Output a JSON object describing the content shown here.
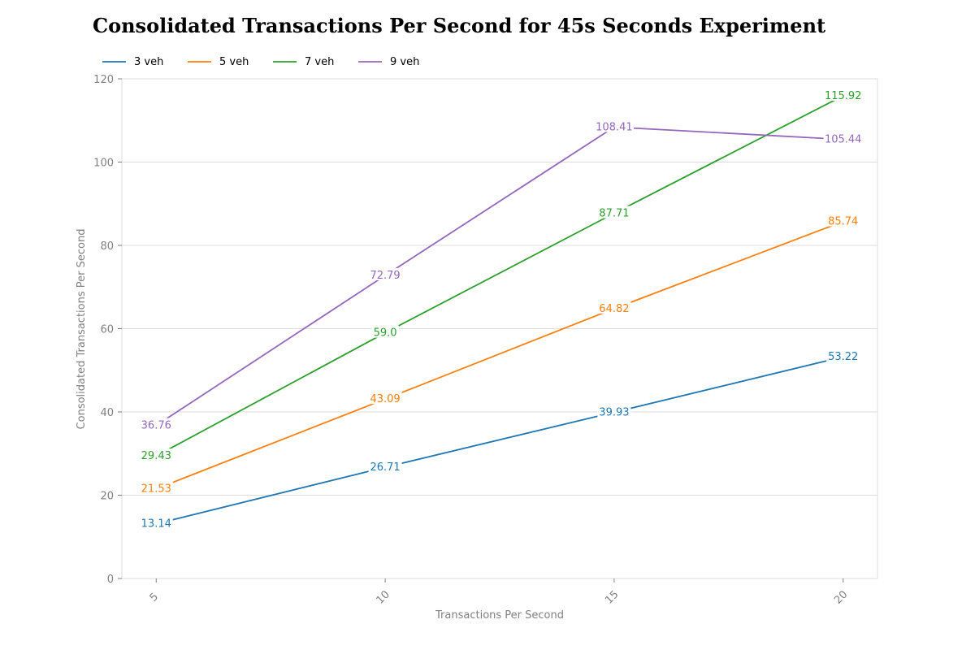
{
  "chart_data": {
    "type": "line",
    "title": "Consolidated Transactions Per Second for 45s Seconds Experiment",
    "xlabel": "Transactions Per Second",
    "ylabel": "Consolidated Transactions Per Second",
    "x": [
      5,
      10,
      15,
      20
    ],
    "x_tick_labels": [
      "5",
      "10",
      "15",
      "20"
    ],
    "y_ticks": [
      0,
      20,
      40,
      60,
      80,
      100,
      120
    ],
    "y_tick_labels": [
      "0",
      "20",
      "40",
      "60",
      "80",
      "100",
      "120"
    ],
    "xlim": [
      4.25,
      20.75
    ],
    "ylim": [
      0,
      120
    ],
    "grid": "horizontal",
    "legend_position": "top-left",
    "series": [
      {
        "name": "3 veh",
        "color": "#1f77b4",
        "values": [
          13.14,
          26.71,
          39.93,
          53.22
        ],
        "labels": [
          "13.14",
          "26.71",
          "39.93",
          "53.22"
        ]
      },
      {
        "name": "5 veh",
        "color": "#ff7f0e",
        "values": [
          21.53,
          43.09,
          64.82,
          85.74
        ],
        "labels": [
          "21.53",
          "43.09",
          "64.82",
          "85.74"
        ]
      },
      {
        "name": "7 veh",
        "color": "#2ca02c",
        "values": [
          29.43,
          59.0,
          87.71,
          115.92
        ],
        "labels": [
          "29.43",
          "59.0",
          "87.71",
          "115.92"
        ]
      },
      {
        "name": "9 veh",
        "color": "#9467bd",
        "values": [
          36.76,
          72.79,
          108.41,
          105.44
        ],
        "labels": [
          "36.76",
          "72.79",
          "108.41",
          "105.44"
        ]
      }
    ]
  }
}
